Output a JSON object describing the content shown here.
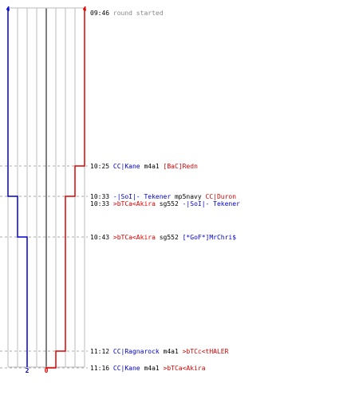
{
  "chart_data": {
    "type": "line",
    "title": "",
    "xlabel": "",
    "ylabel": "",
    "scores": {
      "blue_start": "4",
      "red_start": "4",
      "blue_end": "2",
      "red_end": "0"
    },
    "events": [
      {
        "time": "09:46",
        "parts": [
          {
            "text": "round started",
            "team": "gray"
          }
        ],
        "blue": 4,
        "red": 4
      },
      {
        "time": "10:25",
        "parts": [
          {
            "text": "CC|Kane",
            "team": "blue"
          },
          {
            "text": "m4a1",
            "team": "black"
          },
          {
            "text": "[BaC]Redn",
            "team": "red"
          }
        ],
        "blue": 4,
        "red": 3
      },
      {
        "time": "10:33",
        "parts": [
          {
            "text": "-|SoI|- Tekener",
            "team": "blue"
          },
          {
            "text": "mp5navy",
            "team": "black"
          },
          {
            "text": "CC|Duron",
            "team": "red"
          }
        ],
        "blue": 4,
        "red": 2
      },
      {
        "time": "10:33",
        "parts": [
          {
            "text": ">bTCa<Akira",
            "team": "red"
          },
          {
            "text": "sg552",
            "team": "black"
          },
          {
            "text": "-|SoI|- Tekener",
            "team": "blue"
          }
        ],
        "blue": 3,
        "red": 2
      },
      {
        "time": "10:43",
        "parts": [
          {
            "text": ">bTCa<Akira",
            "team": "red"
          },
          {
            "text": "sg552",
            "team": "black"
          },
          {
            "text": "[*GoF*]MrChri$",
            "team": "blue"
          }
        ],
        "blue": 2,
        "red": 2
      },
      {
        "time": "11:12",
        "parts": [
          {
            "text": "CC|Ragnarock",
            "team": "blue"
          },
          {
            "text": "m4a1",
            "team": "black"
          },
          {
            "text": ">bTCc<tHALER",
            "team": "red"
          }
        ],
        "blue": 2,
        "red": 1
      },
      {
        "time": "11:16",
        "parts": [
          {
            "text": "CC|Kane",
            "team": "blue"
          },
          {
            "text": "m4a1",
            "team": "black"
          },
          {
            "text": ">bTCa<Akira",
            "team": "red"
          }
        ],
        "blue": 2,
        "red": 0
      }
    ],
    "colors": {
      "blue": "#0000cc",
      "red": "#dd0000",
      "gray": "#888888",
      "black": "#000000",
      "grid": "#bbbbbb",
      "center": "#555555",
      "dash": "#aaaaaa"
    }
  }
}
